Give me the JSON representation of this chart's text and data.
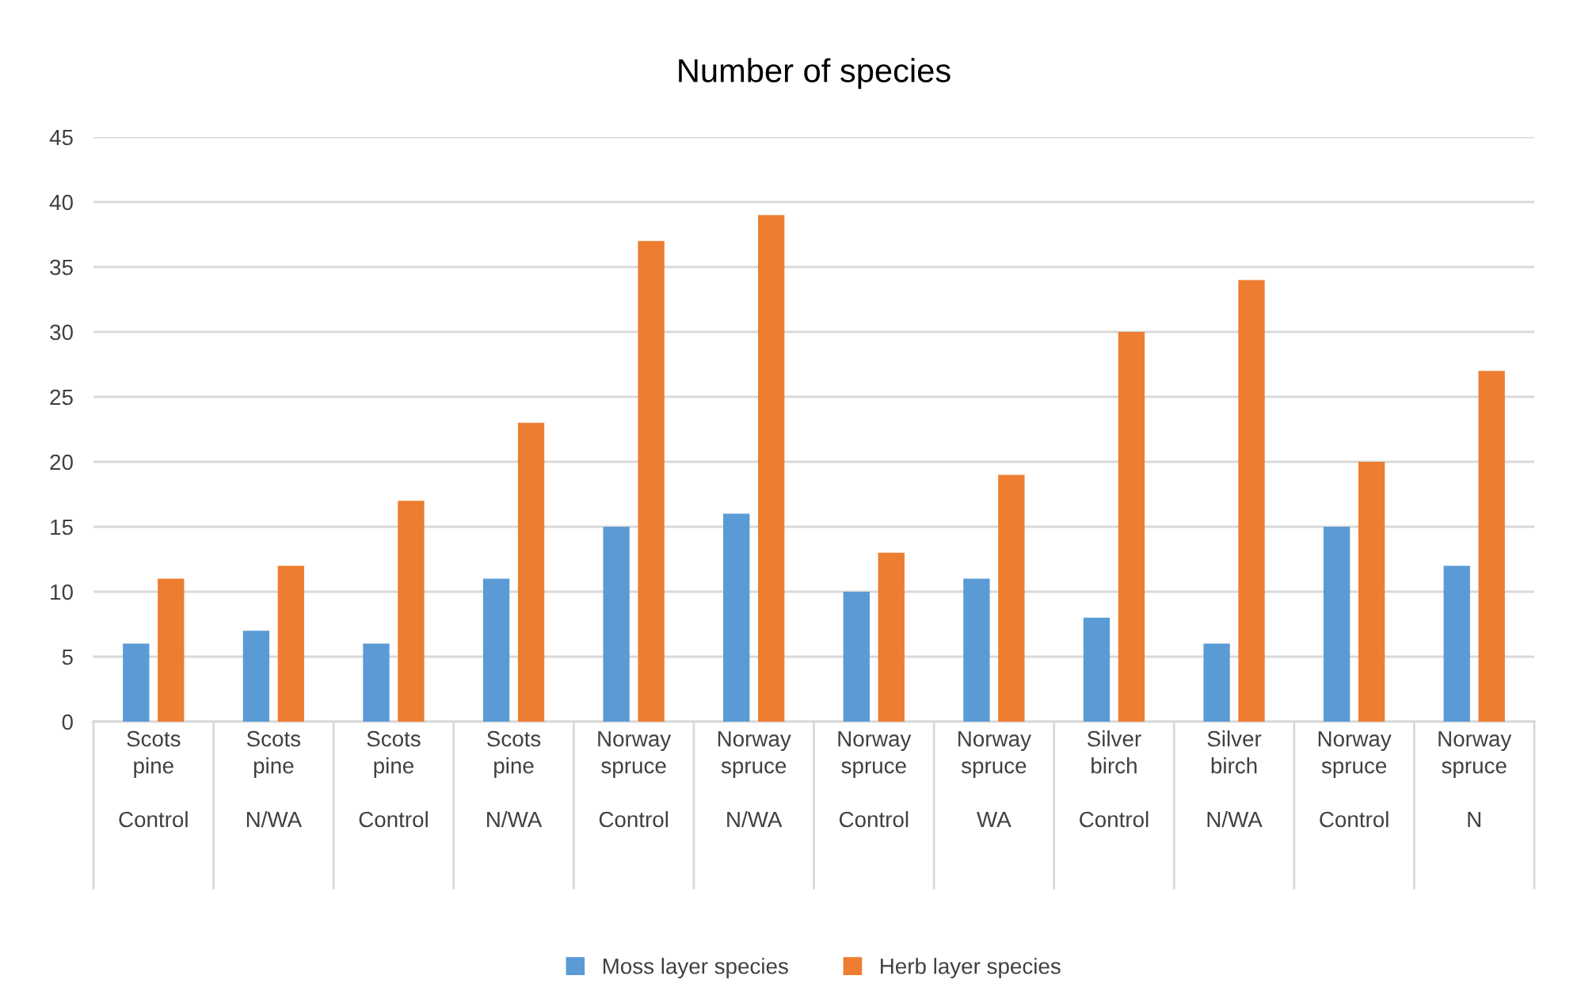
{
  "chart_data": {
    "type": "bar",
    "title": "Number of species",
    "categories": [
      "Scots\npine\n\nControl",
      "Scots\npine\n\nN/WA",
      "Scots\npine\n\nControl",
      "Scots\npine\n\nN/WA",
      "Norway\nspruce\n\nControl",
      "Norway\nspruce\n\nN/WA",
      "Norway\nspruce\n\nControl",
      "Norway\nspruce\n\nWA",
      "Silver\nbirch\n\nControl",
      "Silver\nbirch\n\nN/WA",
      "Norway\nspruce\n\nControl",
      "Norway\nspruce\n\nN"
    ],
    "series": [
      {
        "name": "Moss layer species",
        "color": "#5b9bd5",
        "values": [
          6,
          7,
          6,
          11,
          15,
          16,
          10,
          11,
          8,
          6,
          15,
          12
        ]
      },
      {
        "name": "Herb layer species",
        "color": "#ed7d31",
        "values": [
          11,
          12,
          17,
          23,
          37,
          39,
          13,
          19,
          30,
          34,
          20,
          27
        ]
      }
    ],
    "ylim": [
      0,
      45
    ],
    "yticks": [
      0,
      5,
      10,
      15,
      20,
      25,
      30,
      35,
      40,
      45
    ],
    "grid": "y",
    "legend": "bottom"
  }
}
